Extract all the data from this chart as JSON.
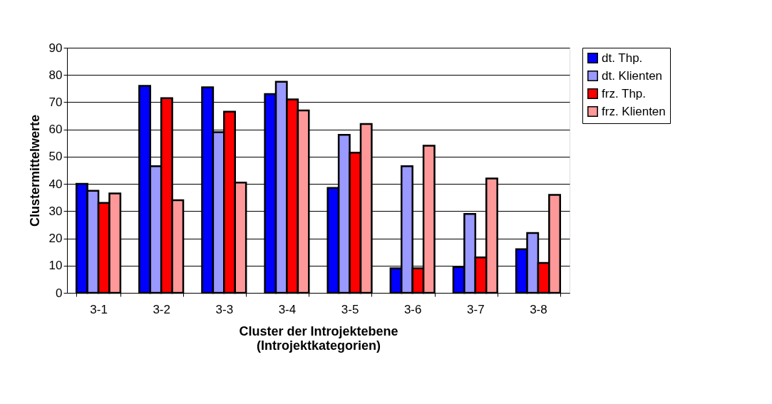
{
  "chart_data": {
    "type": "bar",
    "xlabel": "Cluster der Introjektebene\n(Introjektkategorien)",
    "ylabel": "Clustermittelwerte",
    "categories": [
      "3-1",
      "3-2",
      "3-3",
      "3-4",
      "3-5",
      "3-6",
      "3-7",
      "3-8"
    ],
    "series": [
      {
        "name": "dt. Thp.",
        "color": "#0000ff",
        "values": [
          40,
          76,
          75.5,
          73,
          38.5,
          9,
          9.5,
          16
        ]
      },
      {
        "name": "dt. Klienten",
        "color": "#9999ff",
        "values": [
          37.5,
          46.5,
          59,
          77.5,
          58,
          46.5,
          29,
          22
        ]
      },
      {
        "name": "frz. Thp.",
        "color": "#ff0000",
        "values": [
          33,
          71.5,
          66.5,
          71,
          51.5,
          9,
          13,
          11
        ]
      },
      {
        "name": "frz. Klienten",
        "color": "#ff9999",
        "values": [
          36.5,
          34,
          40.5,
          67,
          62,
          54,
          42,
          36
        ]
      }
    ],
    "ylim": [
      0,
      90
    ],
    "yticks": [
      0,
      10,
      20,
      30,
      40,
      50,
      60,
      70,
      80,
      90
    ],
    "grid": "y",
    "legend": "right"
  }
}
